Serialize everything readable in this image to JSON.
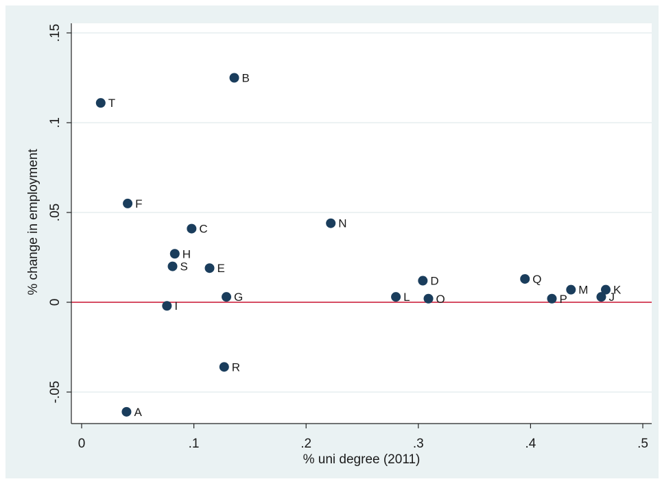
{
  "chart_data": {
    "type": "scatter",
    "title": "",
    "xlabel": "% uni degree (2011)",
    "ylabel": "% change in employment",
    "xlim": [
      -0.01,
      0.51
    ],
    "ylim": [
      -0.067,
      0.153
    ],
    "xticks": [
      0,
      0.1,
      0.2,
      0.3,
      0.4,
      0.5
    ],
    "xtick_labels": [
      "0",
      ".1",
      ".2",
      ".3",
      ".4",
      ".5"
    ],
    "yticks": [
      -0.05,
      0,
      0.05,
      0.1,
      0.15
    ],
    "ytick_labels": [
      "-.05",
      "0",
      ".05",
      ".1",
      ".15"
    ],
    "grid": true,
    "reference_line": {
      "y": 0,
      "color": "#c8102e"
    },
    "colors": {
      "outer_bg": "#eaf2f3",
      "plot_bg": "#ffffff",
      "marker": "#1a3d5c",
      "gridline": "#e6eeef",
      "label": "#1a3d5c"
    },
    "points": [
      {
        "label": "A",
        "x": 0.04,
        "y": -0.061
      },
      {
        "label": "B",
        "x": 0.136,
        "y": 0.125
      },
      {
        "label": "C",
        "x": 0.098,
        "y": 0.041
      },
      {
        "label": "D",
        "x": 0.304,
        "y": 0.012
      },
      {
        "label": "E",
        "x": 0.114,
        "y": 0.019
      },
      {
        "label": "F",
        "x": 0.041,
        "y": 0.055
      },
      {
        "label": "G",
        "x": 0.129,
        "y": 0.003
      },
      {
        "label": "H",
        "x": 0.083,
        "y": 0.027
      },
      {
        "label": "I",
        "x": 0.076,
        "y": -0.002
      },
      {
        "label": "J",
        "x": 0.463,
        "y": 0.003
      },
      {
        "label": "K",
        "x": 0.467,
        "y": 0.007
      },
      {
        "label": "L",
        "x": 0.28,
        "y": 0.003
      },
      {
        "label": "M",
        "x": 0.436,
        "y": 0.007
      },
      {
        "label": "N",
        "x": 0.222,
        "y": 0.044
      },
      {
        "label": "O",
        "x": 0.309,
        "y": 0.002
      },
      {
        "label": "P",
        "x": 0.419,
        "y": 0.002
      },
      {
        "label": "Q",
        "x": 0.395,
        "y": 0.013
      },
      {
        "label": "R",
        "x": 0.127,
        "y": -0.036
      },
      {
        "label": "S",
        "x": 0.081,
        "y": 0.02
      },
      {
        "label": "T",
        "x": 0.017,
        "y": 0.111
      }
    ]
  }
}
